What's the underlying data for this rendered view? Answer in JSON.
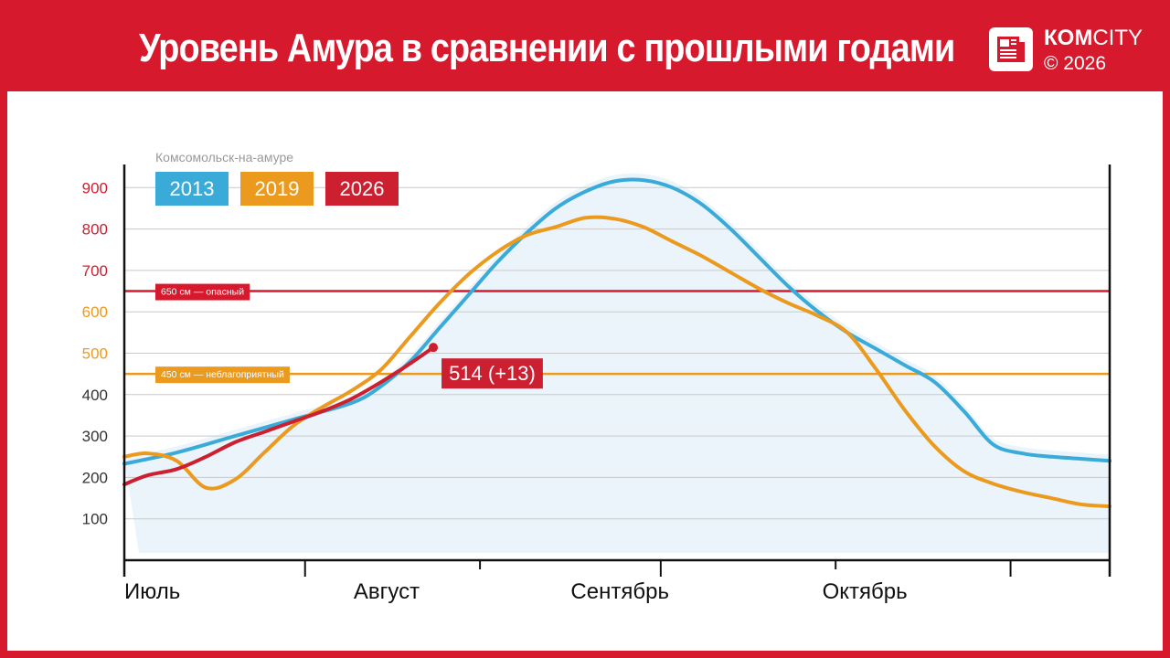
{
  "header": {
    "title": "Уровень Амура в сравнении с прошлыми годами",
    "logo_name_bold": "КОМ",
    "logo_name_rest": "CITY",
    "logo_copyright": "© 2026",
    "logo_icon": "newspaper-icon"
  },
  "colors": {
    "brand_red": "#d7192d",
    "s2013": "#3aabd9",
    "s2019": "#eb9a1e",
    "s2026": "#cc1f30",
    "area_fill": "#eaf4fa"
  },
  "chart_data": {
    "type": "line",
    "subtitle": "Комсомольск-на-амуре",
    "x_unit": "day",
    "x_labels": [
      "Июль",
      "Август",
      "Сентябрь",
      "Октябрь"
    ],
    "y_ticks": [
      100,
      200,
      300,
      400,
      500,
      600,
      700,
      800,
      900
    ],
    "ylim": [
      0,
      1000
    ],
    "grid": true,
    "thresholds": [
      {
        "value": 650,
        "label": "650 см — опасный",
        "color": "#d7192d"
      },
      {
        "value": 450,
        "label": "450 см — неблагоприятный",
        "color": "#eb9a1e"
      }
    ],
    "series": [
      {
        "name": "2013",
        "color": "#3aabd9",
        "points": [
          [
            1,
            233
          ],
          [
            10,
            260
          ],
          [
            20,
            300
          ],
          [
            30,
            340
          ],
          [
            40,
            380
          ],
          [
            45,
            420
          ],
          [
            50,
            480
          ],
          [
            55,
            560
          ],
          [
            60,
            640
          ],
          [
            65,
            720
          ],
          [
            70,
            790
          ],
          [
            75,
            850
          ],
          [
            80,
            890
          ],
          [
            85,
            915
          ],
          [
            90,
            918
          ],
          [
            95,
            900
          ],
          [
            100,
            860
          ],
          [
            105,
            800
          ],
          [
            110,
            730
          ],
          [
            115,
            660
          ],
          [
            120,
            600
          ],
          [
            125,
            550
          ],
          [
            130,
            510
          ],
          [
            135,
            470
          ],
          [
            140,
            430
          ],
          [
            145,
            360
          ],
          [
            150,
            280
          ],
          [
            155,
            258
          ],
          [
            160,
            250
          ],
          [
            165,
            245
          ],
          [
            170,
            240
          ]
        ]
      },
      {
        "name": "2019",
        "color": "#eb9a1e",
        "points": [
          [
            1,
            250
          ],
          [
            5,
            258
          ],
          [
            10,
            240
          ],
          [
            15,
            175
          ],
          [
            20,
            195
          ],
          [
            25,
            260
          ],
          [
            30,
            325
          ],
          [
            35,
            370
          ],
          [
            40,
            410
          ],
          [
            45,
            460
          ],
          [
            50,
            540
          ],
          [
            55,
            620
          ],
          [
            60,
            690
          ],
          [
            65,
            745
          ],
          [
            70,
            785
          ],
          [
            75,
            805
          ],
          [
            80,
            827
          ],
          [
            85,
            825
          ],
          [
            90,
            805
          ],
          [
            95,
            770
          ],
          [
            100,
            735
          ],
          [
            105,
            695
          ],
          [
            110,
            655
          ],
          [
            115,
            620
          ],
          [
            120,
            590
          ],
          [
            125,
            550
          ],
          [
            130,
            460
          ],
          [
            135,
            360
          ],
          [
            140,
            275
          ],
          [
            145,
            215
          ],
          [
            150,
            185
          ],
          [
            155,
            165
          ],
          [
            160,
            150
          ],
          [
            165,
            135
          ],
          [
            170,
            130
          ]
        ]
      },
      {
        "name": "2026",
        "color": "#cc1f30",
        "points": [
          [
            1,
            183
          ],
          [
            5,
            205
          ],
          [
            10,
            220
          ],
          [
            15,
            250
          ],
          [
            20,
            285
          ],
          [
            25,
            310
          ],
          [
            30,
            335
          ],
          [
            35,
            360
          ],
          [
            40,
            390
          ],
          [
            45,
            430
          ],
          [
            50,
            475
          ],
          [
            54,
            514
          ]
        ],
        "current_label": "514 (+13)"
      }
    ]
  }
}
